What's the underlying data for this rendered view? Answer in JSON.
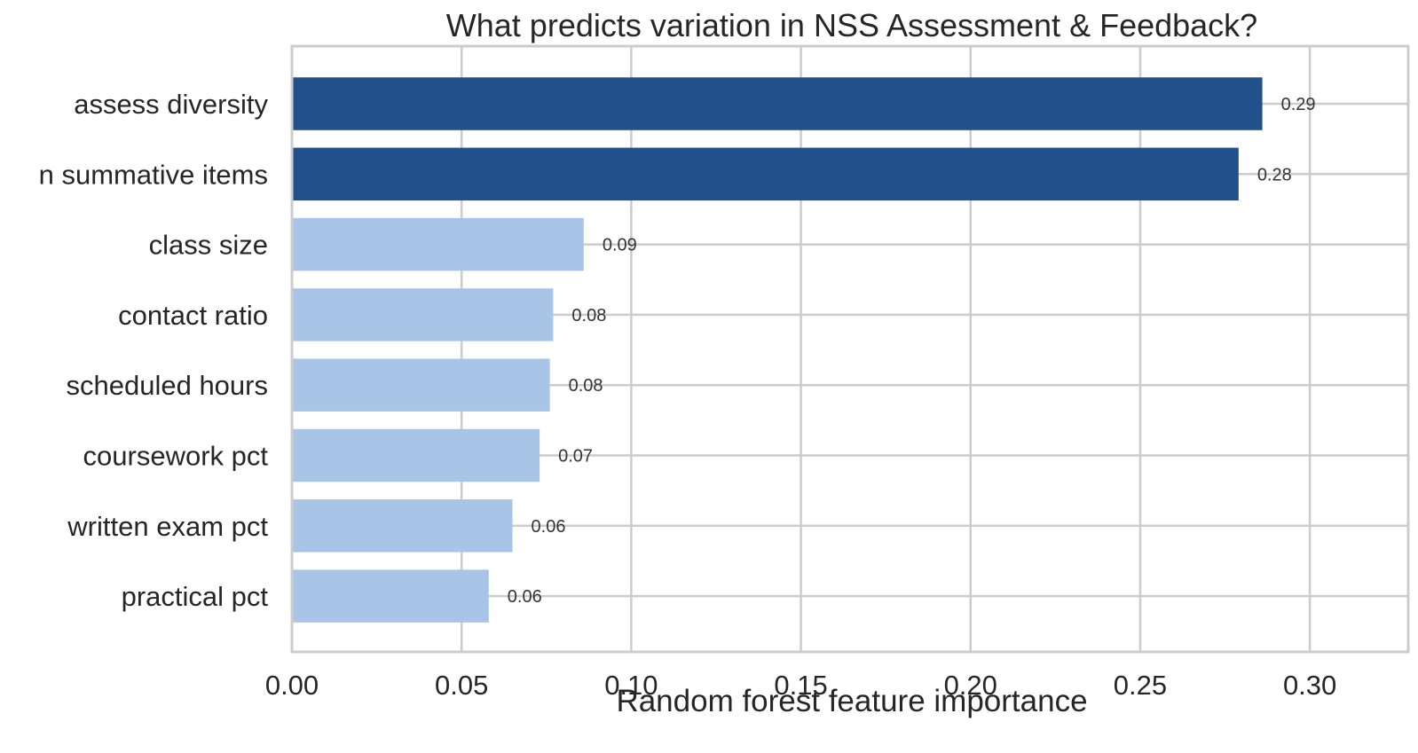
{
  "chart_data": {
    "type": "bar",
    "orientation": "horizontal",
    "title": "What predicts variation in NSS Assessment & Feedback?",
    "xlabel": "Random forest feature importance",
    "ylabel": "",
    "xlim": [
      0,
      0.329
    ],
    "xticks": [
      0.0,
      0.05,
      0.1,
      0.15,
      0.2,
      0.25,
      0.3
    ],
    "xtick_labels": [
      "0.00",
      "0.05",
      "0.10",
      "0.15",
      "0.20",
      "0.25",
      "0.30"
    ],
    "grid": true,
    "categories": [
      "assess diversity",
      "n summative items",
      "class size",
      "contact ratio",
      "scheduled hours",
      "coursework pct",
      "written exam pct",
      "practical pct"
    ],
    "values": [
      0.286,
      0.279,
      0.086,
      0.077,
      0.076,
      0.073,
      0.065,
      0.058
    ],
    "value_labels": [
      "0.29",
      "0.28",
      "0.09",
      "0.08",
      "0.08",
      "0.07",
      "0.06",
      "0.06"
    ],
    "colors": {
      "highlight": "#21508a",
      "default": "#a8c5e8",
      "grid": "#cccccc",
      "text": "#262626"
    },
    "highlighted": [
      true,
      true,
      false,
      false,
      false,
      false,
      false,
      false
    ]
  }
}
